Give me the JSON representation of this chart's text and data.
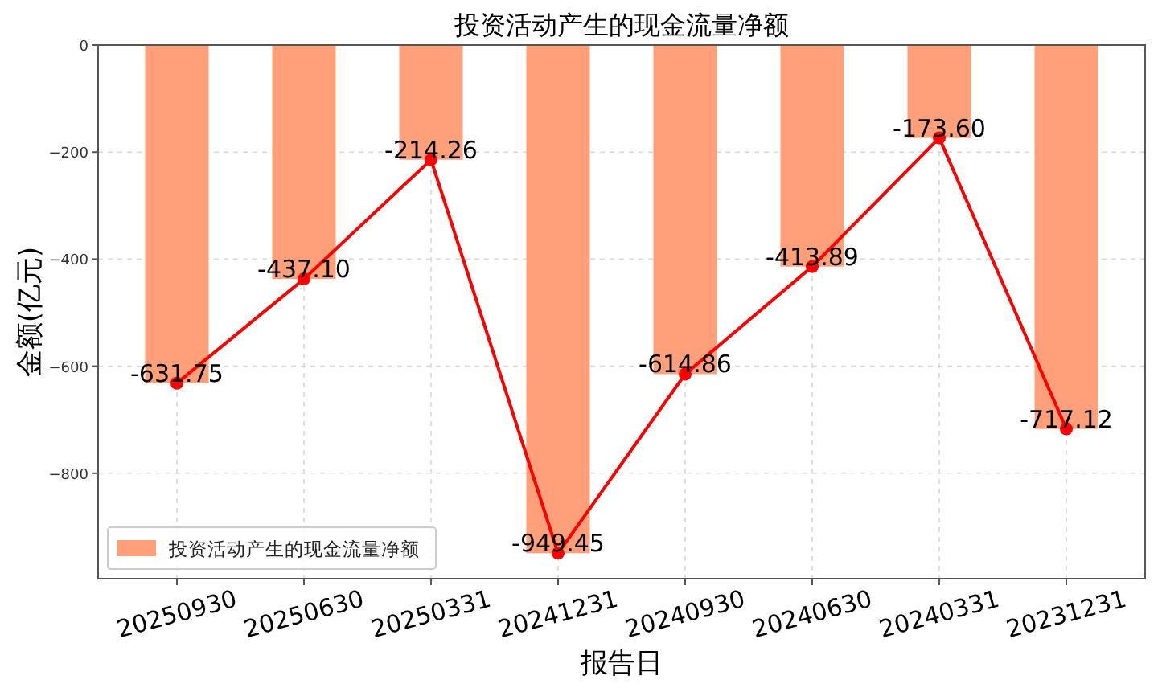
{
  "chart_data": {
    "type": "bar",
    "title": "投资活动产生的现金流量净额",
    "xlabel": "报告日",
    "ylabel": "金额(亿元)",
    "categories": [
      "20250930",
      "20250630",
      "20250331",
      "20241231",
      "20240930",
      "20240630",
      "20240331",
      "20231231"
    ],
    "series": [
      {
        "name": "投资活动产生的现金流量净额",
        "color": "#ffa07a",
        "values": [
          -631.75,
          -437.1,
          -214.26,
          -949.45,
          -614.86,
          -413.89,
          -173.6,
          -717.12
        ]
      },
      {
        "type": "line",
        "color": "#ff0000",
        "values": [
          -631.75,
          -437.1,
          -214.26,
          -949.45,
          -614.86,
          -413.89,
          -173.6,
          -717.12
        ],
        "value_labels": [
          "-631.75",
          "-437.10",
          "-214.26",
          "-949.45",
          "-614.86",
          "-413.89",
          "-173.60",
          "-717.12"
        ]
      }
    ],
    "ylim": [
      -997,
      0
    ],
    "yticks": [
      0,
      {
        "value": -200,
        "label": "−200"
      },
      {
        "value": -400,
        "label": "−400"
      },
      {
        "value": -600,
        "label": "−600"
      },
      {
        "value": -800,
        "label": "−800"
      }
    ],
    "grid": true,
    "legend": "bottom left",
    "marker": "circle"
  }
}
